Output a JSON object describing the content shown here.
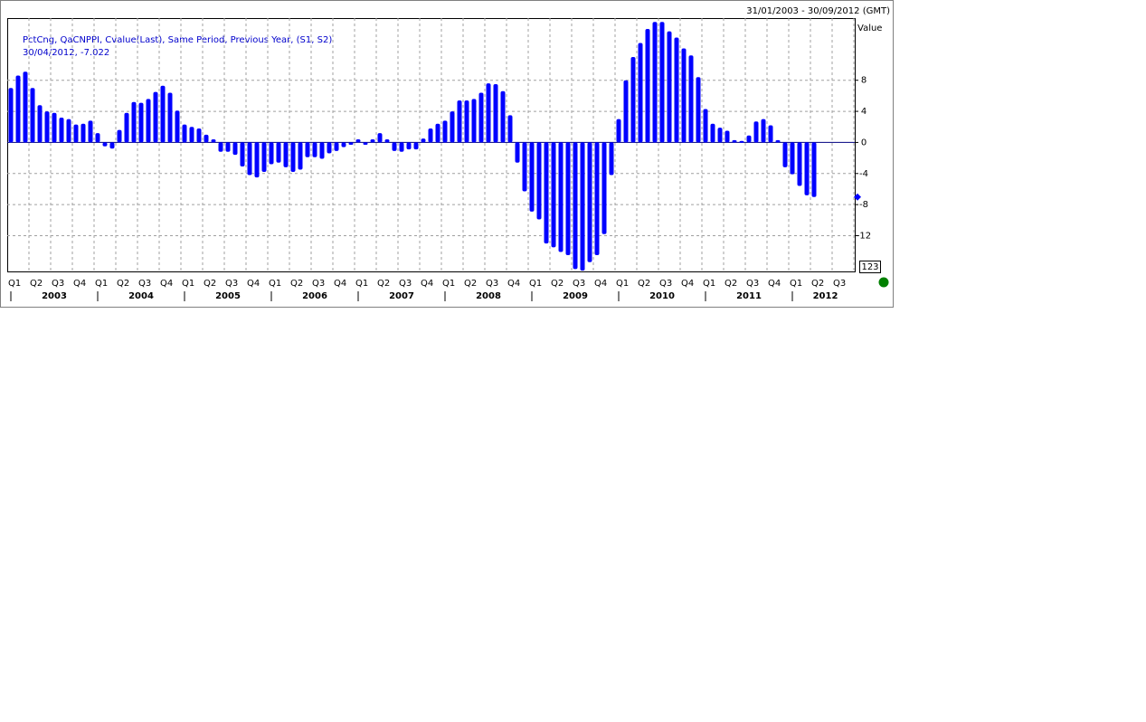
{
  "chart_data": {
    "type": "bar",
    "date_range": "31/01/2003 - 30/09/2012 (GMT)",
    "y_axis_label": "Value",
    "legend": [
      "PctCng, QaCNPPI, Cvalue(Last), Same Period, Previous Year, (S1, S2)",
      "30/04/2012, -7.022"
    ],
    "last_value": -7.022,
    "badge": "123",
    "color": "#0000ff",
    "values": [
      7.0,
      8.6,
      9.1,
      7.0,
      4.8,
      4.0,
      3.8,
      3.2,
      3.0,
      2.3,
      2.4,
      2.8,
      1.2,
      -0.5,
      -0.8,
      1.6,
      3.8,
      5.2,
      5.1,
      5.6,
      6.5,
      7.3,
      6.4,
      4.1,
      2.3,
      2.0,
      1.8,
      1.0,
      0.4,
      -1.2,
      -1.2,
      -1.6,
      -3.1,
      -4.2,
      -4.5,
      -3.8,
      -2.8,
      -2.6,
      -3.2,
      -3.8,
      -3.5,
      -1.9,
      -1.9,
      -2.1,
      -1.4,
      -1.1,
      -0.6,
      -0.3,
      0.4,
      -0.3,
      0.4,
      1.2,
      0.4,
      -1.1,
      -1.2,
      -0.9,
      -0.9,
      0.5,
      1.8,
      2.4,
      2.8,
      4.0,
      5.4,
      5.4,
      5.6,
      6.4,
      7.6,
      7.5,
      6.6,
      3.5,
      -2.6,
      -6.3,
      -8.9,
      -9.9,
      -13.0,
      -13.5,
      -14.1,
      -14.5,
      -16.3,
      -16.5,
      -15.4,
      -14.5,
      -11.8,
      -4.2,
      3.0,
      8.0,
      11.0,
      12.8,
      14.6,
      15.5,
      15.5,
      14.3,
      13.5,
      12.1,
      11.2,
      8.4,
      4.3,
      2.4,
      1.9,
      1.5,
      0.3,
      0.2,
      0.9,
      2.7,
      3.0,
      2.2,
      0.3,
      -3.2,
      -4.1,
      -5.6,
      -6.8,
      -7.022
    ],
    "quarters": [
      "Q1",
      "Q2",
      "Q3",
      "Q4",
      "Q1",
      "Q2",
      "Q3",
      "Q4",
      "Q1",
      "Q2",
      "Q3",
      "Q4",
      "Q1",
      "Q2",
      "Q3",
      "Q4",
      "Q1",
      "Q2",
      "Q3",
      "Q4",
      "Q1",
      "Q2",
      "Q3",
      "Q4",
      "Q1",
      "Q2",
      "Q3",
      "Q4",
      "Q1",
      "Q2",
      "Q3",
      "Q4",
      "Q1",
      "Q2",
      "Q3",
      "Q4",
      "Q1",
      "Q2",
      "Q3"
    ],
    "years": [
      "2003",
      "2004",
      "2005",
      "2006",
      "2007",
      "2008",
      "2009",
      "2010",
      "2011",
      "2012"
    ],
    "ylim": [
      -16.6,
      16.0
    ],
    "yticks": [
      -12,
      -8,
      -4,
      0,
      4,
      8
    ],
    "grid": true
  }
}
